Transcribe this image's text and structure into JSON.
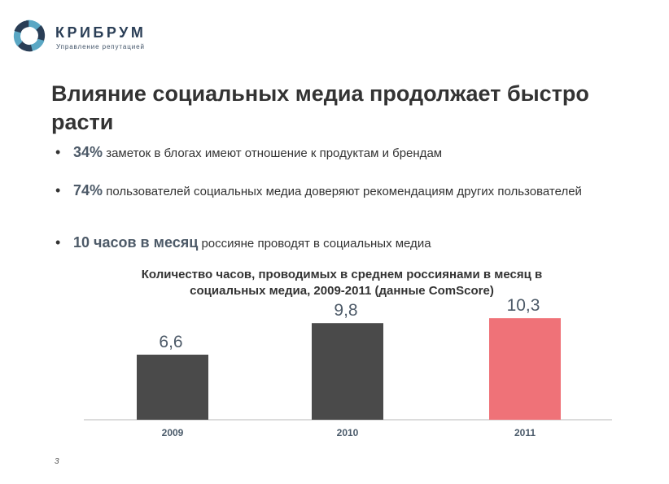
{
  "logo": {
    "name": "КРИБРУМ",
    "tagline": "Управление репутацией",
    "colors": {
      "teal": "#5aa7c4",
      "navy": "#2a3e56"
    }
  },
  "title": "Влияние социальных медиа продолжает быстро расти",
  "bullets": [
    {
      "highlight": "34%",
      "text": " заметок в блогах имеют отношение к продуктам и брендам"
    },
    {
      "highlight": "74%",
      "text": " пользователей социальных медиа доверяют рекомендациям других пользователей"
    },
    {
      "highlight": "10 часов в месяц",
      "text": " россияне проводят в социальных медиа"
    }
  ],
  "chart_data": {
    "type": "bar",
    "title": "Количество часов, проводимых в среднем россиянами в месяц в социальных медиа, 2009-2011 (данные ComScore)",
    "categories": [
      "2009",
      "2010",
      "2011"
    ],
    "values": [
      6.6,
      9.8,
      10.3
    ],
    "value_labels": [
      "6,6",
      "9,8",
      "10,3"
    ],
    "xlabel": "",
    "ylabel": "",
    "ylim": [
      0,
      12
    ],
    "grid": false,
    "legend": "none",
    "colors": [
      "#4a4a4a",
      "#4a4a4a",
      "#ef7278"
    ]
  },
  "slide_number": "3"
}
